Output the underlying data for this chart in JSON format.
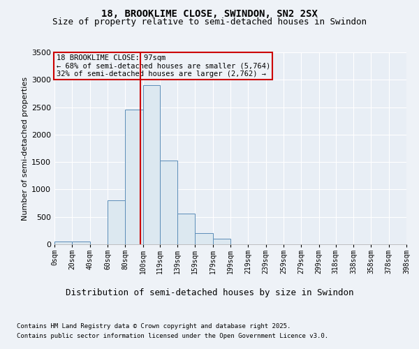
{
  "title1": "18, BROOKLIME CLOSE, SWINDON, SN2 2SX",
  "title2": "Size of property relative to semi-detached houses in Swindon",
  "xlabel": "Distribution of semi-detached houses by size in Swindon",
  "ylabel": "Number of semi-detached properties",
  "footnote1": "Contains HM Land Registry data © Crown copyright and database right 2025.",
  "footnote2": "Contains public sector information licensed under the Open Government Licence v3.0.",
  "annotation_title": "18 BROOKLIME CLOSE: 97sqm",
  "annotation_line1": "← 68% of semi-detached houses are smaller (5,764)",
  "annotation_line2": "32% of semi-detached houses are larger (2,762) →",
  "property_size": 97,
  "bin_edges": [
    0,
    20,
    40,
    60,
    80,
    100,
    119,
    139,
    159,
    179,
    199,
    219,
    239,
    259,
    279,
    299,
    318,
    338,
    358,
    378,
    398
  ],
  "bar_heights": [
    50,
    50,
    0,
    800,
    2450,
    2900,
    1530,
    560,
    200,
    100,
    0,
    0,
    0,
    0,
    0,
    0,
    0,
    0,
    0,
    0
  ],
  "bar_color": "#dce8f0",
  "bar_edge_color": "#5b8db8",
  "vline_color": "#cc0000",
  "vline_x": 97,
  "ylim": [
    0,
    3500
  ],
  "yticks": [
    0,
    500,
    1000,
    1500,
    2000,
    2500,
    3000,
    3500
  ],
  "background_color": "#eef2f7",
  "plot_bg_color": "#e8eef5",
  "annotation_box_color": "#cc0000",
  "grid_color": "#ffffff",
  "title1_fontsize": 10,
  "title2_fontsize": 9,
  "ylabel_fontsize": 8,
  "xlabel_fontsize": 9,
  "tick_fontsize": 7,
  "ytick_fontsize": 8,
  "footnote_fontsize": 6.5
}
